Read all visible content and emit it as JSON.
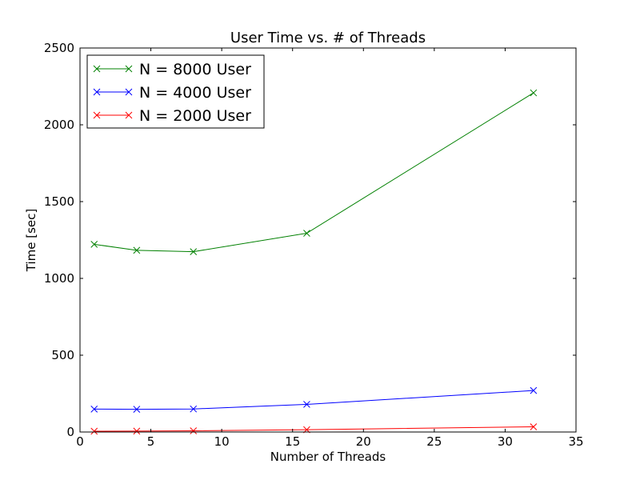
{
  "chart_data": {
    "type": "line",
    "title": "User Time vs. # of Threads",
    "xlabel": "Number of Threads",
    "ylabel": "Time [sec]",
    "xlim": [
      0,
      35
    ],
    "ylim": [
      0,
      2500
    ],
    "xticks": [
      0,
      5,
      10,
      15,
      20,
      25,
      30,
      35
    ],
    "yticks": [
      0,
      500,
      1000,
      1500,
      2000,
      2500
    ],
    "grid": false,
    "legend": "top-left",
    "marker": "x",
    "series": [
      {
        "name": "N = 8000 User",
        "color": "#008000",
        "x": [
          1,
          4,
          8,
          16,
          32
        ],
        "y": [
          1222,
          1183,
          1174,
          1294,
          2208
        ]
      },
      {
        "name": "N = 4000 User",
        "color": "#0000ff",
        "x": [
          1,
          4,
          8,
          16,
          32
        ],
        "y": [
          149,
          148,
          150,
          180,
          270
        ]
      },
      {
        "name": "N = 2000 User",
        "color": "#ff0000",
        "x": [
          1,
          4,
          8,
          16,
          32
        ],
        "y": [
          5,
          6,
          8,
          15,
          34
        ]
      }
    ]
  }
}
